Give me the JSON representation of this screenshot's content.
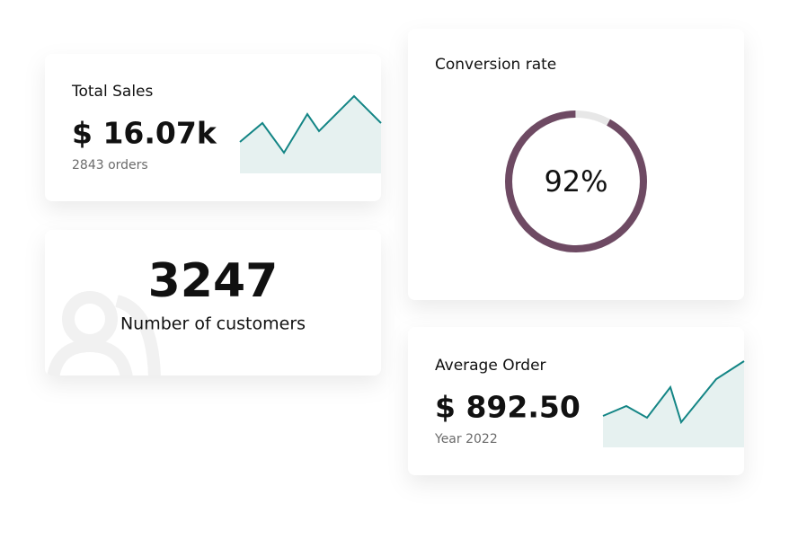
{
  "cards": [
    {
      "title": "Total Sales",
      "value": "$ 16.07k",
      "caption": "2843 orders"
    },
    {
      "value": "3247",
      "caption": "Number of customers"
    },
    {
      "title": "Conversion rate",
      "rate": 92,
      "rate_label": "92%"
    },
    {
      "title": "Average Order",
      "value": "$ 892.50",
      "caption": "Year 2022"
    }
  ]
}
